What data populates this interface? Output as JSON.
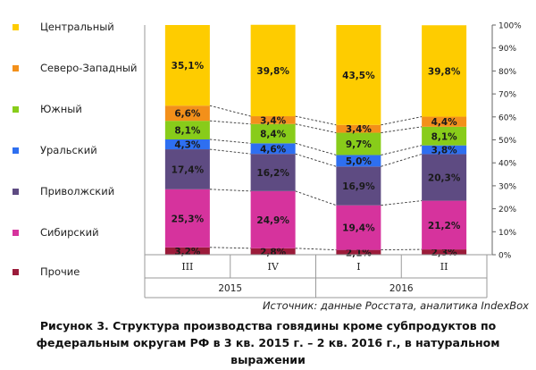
{
  "chart_data": {
    "type": "bar",
    "stacked": true,
    "percent": true,
    "categories": [
      "III",
      "IV",
      "I",
      "II"
    ],
    "groups": [
      {
        "label": "2015",
        "categories": [
          "III",
          "IV"
        ]
      },
      {
        "label": "2016",
        "categories": [
          "I",
          "II"
        ]
      }
    ],
    "series": [
      {
        "name": "Прочие",
        "color": "#9b1b3a",
        "values": [
          3.2,
          2.8,
          2.1,
          2.3
        ],
        "labels": [
          "3,2%",
          "2,8%",
          "2,1%",
          "2,3%"
        ]
      },
      {
        "name": "Сибирский",
        "color": "#d6339d",
        "values": [
          25.3,
          24.9,
          19.4,
          21.2
        ],
        "labels": [
          "25,3%",
          "24,9%",
          "19,4%",
          "21,2%"
        ]
      },
      {
        "name": "Приволжский",
        "color": "#5e4b82",
        "values": [
          17.4,
          16.2,
          16.9,
          20.3
        ],
        "labels": [
          "17,4%",
          "16,2%",
          "16,9%",
          "20,3%"
        ]
      },
      {
        "name": "Уральский",
        "color": "#2e6ff0",
        "values": [
          4.3,
          4.6,
          5.0,
          3.8
        ],
        "labels": [
          "4,3%",
          "4,6%",
          "5,0%",
          "3,8%"
        ]
      },
      {
        "name": "Южный",
        "color": "#88cc1a",
        "values": [
          8.1,
          8.4,
          9.7,
          8.1
        ],
        "labels": [
          "8,1%",
          "8,4%",
          "9,7%",
          "8,1%"
        ]
      },
      {
        "name": "Северо-Западный",
        "color": "#f3901a",
        "values": [
          6.6,
          3.4,
          3.4,
          4.4
        ],
        "labels": [
          "6,6%",
          "3,4%",
          "3,4%",
          "4,4%"
        ]
      },
      {
        "name": "Центральный",
        "color": "#fecc00",
        "values": [
          35.1,
          39.8,
          43.5,
          39.8
        ],
        "labels": [
          "35,1%",
          "39,8%",
          "43,5%",
          "39,8%"
        ]
      }
    ],
    "legend_order": [
      "Центральный",
      "Северо-Западный",
      "Южный",
      "Уральский",
      "Приволжский",
      "Сибирский",
      "Прочие"
    ],
    "yticks": [
      "0%",
      "10%",
      "20%",
      "30%",
      "40%",
      "50%",
      "60%",
      "70%",
      "80%",
      "90%",
      "100%"
    ],
    "ylim": [
      0,
      100
    ],
    "axis_position": "right",
    "connector_lines": "dashed",
    "grid": false,
    "legend_position": "left"
  },
  "source": "Источник: данные Росстата, аналитика IndexBox",
  "caption": [
    "Рисунок 3. Структура производства говядины кроме субпродуктов по",
    "федеральным округам РФ в 3 кв. 2015 г. – 2 кв. 2016 г., в натуральном",
    "выражении"
  ]
}
